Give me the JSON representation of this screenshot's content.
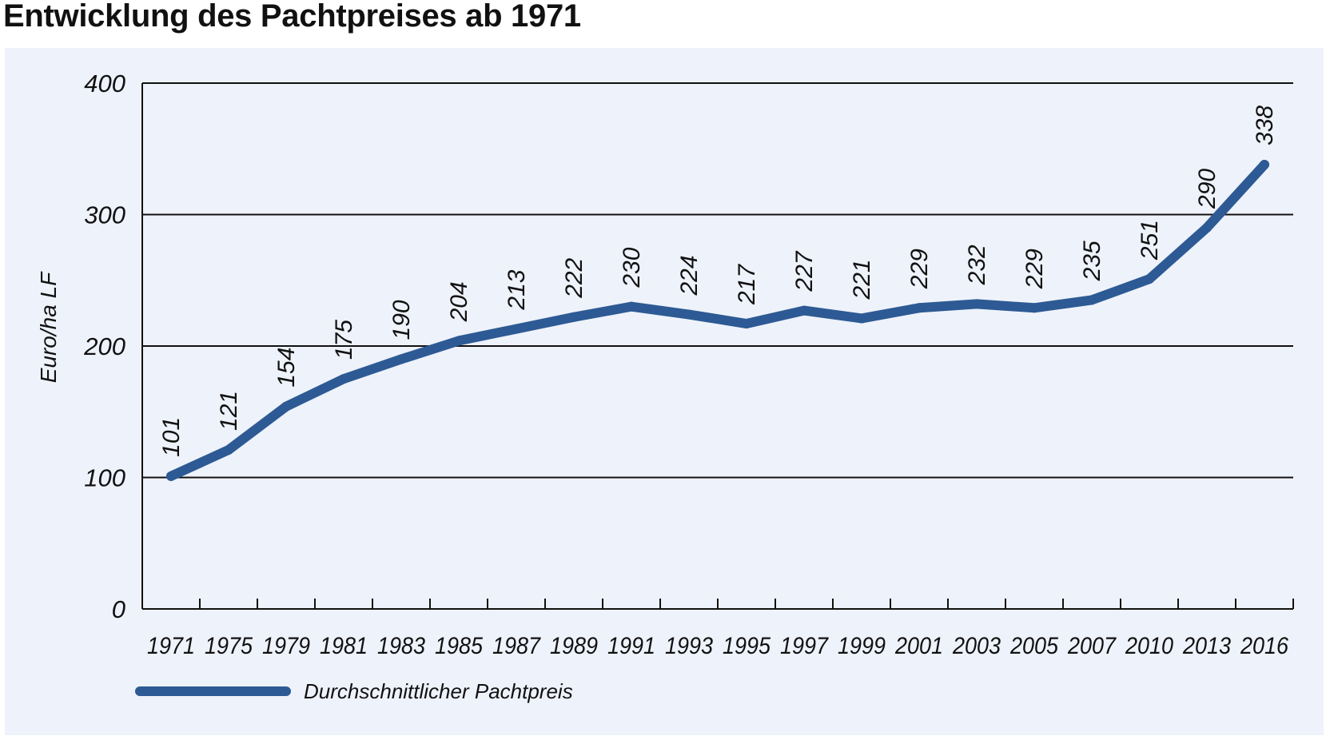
{
  "header": {
    "title": "Entwicklung des Pachtpreises ab 1971"
  },
  "chart_data": {
    "type": "line",
    "title": "Entwicklung des Pachtpreises ab 1971",
    "xlabel": "",
    "ylabel": "Euro/ha LF",
    "ylim": [
      0,
      400
    ],
    "yticks": [
      "0",
      "100",
      "200",
      "300",
      "400"
    ],
    "categories": [
      "1971",
      "1975",
      "1979",
      "1981",
      "1983",
      "1985",
      "1987",
      "1989",
      "1991",
      "1993",
      "1995",
      "1997",
      "1999",
      "2001",
      "2003",
      "2005",
      "2007",
      "2010",
      "2013",
      "2016"
    ],
    "series": [
      {
        "name": "Durchschnittlicher Pachtpreis",
        "values": [
          101,
          121,
          154,
          175,
          190,
          204,
          213,
          222,
          230,
          224,
          217,
          227,
          221,
          229,
          232,
          229,
          235,
          251,
          290,
          338
        ],
        "color": "#2d5a94"
      }
    ],
    "grid": true,
    "legend": "bottom-left"
  }
}
